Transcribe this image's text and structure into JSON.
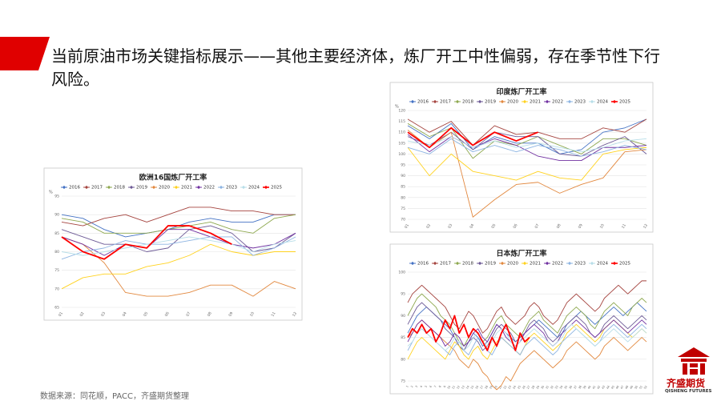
{
  "slide": {
    "title": "当前原油市场关键指标展示——其他主要经济体，炼厂开工中性偏弱，存在季节性下行风险。",
    "source": "数据来源：同花顺，PACC，齐盛期货整理",
    "logo_name": "齐盛期货",
    "logo_en": "QISHENG FUTURES"
  },
  "chart_data": [
    {
      "type": "line",
      "title": "欧洲16国炼厂开工率",
      "y_unit": "%",
      "categories": [
        "01",
        "02",
        "03",
        "04",
        "05",
        "06",
        "07",
        "08",
        "09",
        "10",
        "11",
        "12"
      ],
      "ylim": [
        65,
        95
      ],
      "yticks": [
        65,
        70,
        75,
        80,
        85,
        90,
        95
      ],
      "grid": true,
      "series": [
        {
          "name": "2016",
          "color": "#4472c4",
          "values": [
            90,
            89,
            86,
            84,
            85,
            86,
            88,
            89,
            88,
            88,
            90,
            90
          ]
        },
        {
          "name": "2017",
          "color": "#a5443f",
          "values": [
            88,
            87,
            89,
            90,
            88,
            90,
            92,
            92,
            91,
            91,
            90,
            90
          ]
        },
        {
          "name": "2018",
          "color": "#8ea84f",
          "values": [
            89,
            88,
            85,
            85,
            85,
            86,
            87,
            88,
            86,
            85,
            89,
            90
          ]
        },
        {
          "name": "2019",
          "color": "#6d5a96",
          "values": [
            86,
            84,
            82,
            82,
            80,
            81,
            86,
            87,
            85,
            80,
            81,
            85
          ]
        },
        {
          "name": "2020",
          "color": "#e2883e",
          "values": [
            84,
            82,
            77,
            69,
            68,
            68,
            69,
            71,
            71,
            68,
            72,
            70
          ]
        },
        {
          "name": "2021",
          "color": "#ffd21f",
          "values": [
            70,
            73,
            74,
            74,
            76,
            77,
            79,
            82,
            80,
            79,
            80,
            80
          ]
        },
        {
          "name": "2022",
          "color": "#7030a0",
          "values": [
            84,
            82,
            79,
            82,
            81,
            86,
            86,
            84,
            82,
            81,
            82,
            85
          ]
        },
        {
          "name": "2023",
          "color": "#8db4e2",
          "values": [
            78,
            80,
            81,
            83,
            82,
            82,
            83,
            84,
            84,
            79,
            81,
            84
          ]
        },
        {
          "name": "2024",
          "color": "#b7dee8",
          "values": [
            80,
            79,
            80,
            81,
            82,
            83,
            84,
            83,
            82,
            80,
            82,
            83
          ]
        },
        {
          "name": "2025",
          "color": "#ff0000",
          "values": [
            84,
            80,
            78,
            82,
            81,
            87,
            87,
            85,
            82,
            null,
            null,
            null
          ]
        }
      ]
    },
    {
      "type": "line",
      "title": "印度炼厂开工率",
      "y_unit": "%",
      "categories": [
        "01",
        "02",
        "03",
        "04",
        "05",
        "06",
        "07",
        "08",
        "09",
        "10",
        "11",
        "12"
      ],
      "ylim": [
        70,
        120
      ],
      "yticks": [
        70,
        75,
        80,
        85,
        90,
        95,
        100,
        105,
        110,
        115,
        120
      ],
      "grid": true,
      "series": [
        {
          "name": "2016",
          "color": "#4472c4",
          "values": [
            113,
            107,
            114,
            102,
            108,
            105,
            105,
            100,
            102,
            110,
            112,
            116
          ]
        },
        {
          "name": "2017",
          "color": "#a5443f",
          "values": [
            116,
            110,
            115,
            104,
            113,
            109,
            110,
            107,
            107,
            112,
            110,
            116
          ]
        },
        {
          "name": "2018",
          "color": "#8ea84f",
          "values": [
            114,
            108,
            112,
            98,
            106,
            104,
            108,
            104,
            100,
            107,
            107,
            104
          ]
        },
        {
          "name": "2019",
          "color": "#6d5a96",
          "values": [
            108,
            104,
            110,
            102,
            110,
            108,
            108,
            100,
            99,
            104,
            108,
            100
          ]
        },
        {
          "name": "2020",
          "color": "#e2883e",
          "values": [
            111,
            103,
            110,
            71,
            79,
            86,
            87,
            82,
            86,
            89,
            101,
            102
          ]
        },
        {
          "name": "2021",
          "color": "#ffd21f",
          "values": [
            103,
            90,
            100,
            92,
            90,
            88,
            92,
            89,
            88,
            100,
            102,
            103
          ]
        },
        {
          "name": "2022",
          "color": "#7030a0",
          "values": [
            109,
            101,
            108,
            103,
            107,
            104,
            99,
            97,
            97,
            103,
            103,
            104
          ]
        },
        {
          "name": "2023",
          "color": "#8db4e2",
          "values": [
            103,
            100,
            107,
            101,
            104,
            101,
            104,
            102,
            99,
            101,
            104,
            102
          ]
        },
        {
          "name": "2024",
          "color": "#b7dee8",
          "values": [
            106,
            104,
            108,
            103,
            106,
            103,
            105,
            103,
            101,
            103,
            106,
            107
          ]
        },
        {
          "name": "2025",
          "color": "#ff0000",
          "values": [
            110,
            103,
            112,
            104,
            110,
            106,
            110,
            null,
            null,
            null,
            null,
            null
          ]
        }
      ]
    },
    {
      "type": "line",
      "title": "日本炼厂开工率",
      "categories": [
        "1",
        "2",
        "3",
        "4",
        "5",
        "6",
        "7",
        "8",
        "9",
        "10",
        "11",
        "12",
        "13",
        "14",
        "15",
        "16",
        "17",
        "18",
        "19",
        "20",
        "21",
        "22",
        "23",
        "24",
        "25",
        "26",
        "27",
        "28",
        "29",
        "30",
        "31",
        "32",
        "33",
        "34",
        "35",
        "36",
        "37",
        "38",
        "39",
        "40",
        "41",
        "42",
        "43",
        "44",
        "45",
        "46",
        "47",
        "48",
        "49",
        "50",
        "51",
        "52"
      ],
      "ylim": [
        75,
        100
      ],
      "yticks": [
        75,
        80,
        85,
        90,
        95,
        100
      ],
      "grid": true,
      "series": [
        {
          "name": "2016",
          "color": "#4472c4",
          "values": [
            86,
            88,
            90,
            91,
            92,
            91,
            90,
            89,
            88,
            87,
            85,
            83,
            82,
            84,
            86,
            85,
            83,
            84,
            86,
            88,
            87,
            86,
            85,
            84,
            85,
            86,
            87,
            88,
            89,
            88,
            87,
            86,
            85,
            86,
            88,
            89,
            90,
            91,
            90,
            89,
            88,
            89,
            90,
            91,
            92,
            91,
            90,
            91,
            92,
            93,
            92,
            91
          ]
        },
        {
          "name": "2017",
          "color": "#a5443f",
          "values": [
            93,
            95,
            96,
            97,
            96,
            95,
            94,
            93,
            92,
            90,
            88,
            87,
            89,
            91,
            90,
            88,
            86,
            87,
            89,
            91,
            92,
            90,
            89,
            88,
            89,
            90,
            92,
            93,
            92,
            90,
            89,
            88,
            89,
            91,
            93,
            94,
            95,
            94,
            93,
            92,
            91,
            92,
            94,
            95,
            96,
            97,
            96,
            95,
            96,
            97,
            98,
            98
          ]
        },
        {
          "name": "2018",
          "color": "#8ea84f",
          "values": [
            90,
            92,
            94,
            95,
            94,
            93,
            92,
            90,
            89,
            88,
            86,
            84,
            83,
            85,
            87,
            86,
            84,
            85,
            87,
            89,
            90,
            88,
            87,
            86,
            85,
            87,
            89,
            90,
            91,
            89,
            88,
            87,
            86,
            88,
            90,
            91,
            92,
            91,
            90,
            88,
            87,
            89,
            91,
            92,
            93,
            92,
            91,
            90,
            92,
            93,
            94,
            93
          ]
        },
        {
          "name": "2019",
          "color": "#6d5a96",
          "values": [
            88,
            90,
            92,
            93,
            92,
            91,
            90,
            89,
            87,
            86,
            85,
            83,
            82,
            84,
            85,
            84,
            82,
            83,
            85,
            87,
            88,
            87,
            86,
            84,
            85,
            86,
            88,
            89,
            88,
            87,
            85,
            84,
            85,
            87,
            88,
            89,
            90,
            89,
            88,
            86,
            85,
            86,
            88,
            89,
            90,
            89,
            88,
            87,
            88,
            89,
            90,
            89
          ]
        },
        {
          "name": "2020",
          "color": "#e2883e",
          "values": [
            85,
            86,
            88,
            89,
            88,
            87,
            86,
            85,
            84,
            83,
            82,
            80,
            79,
            78,
            80,
            79,
            77,
            76,
            74,
            73,
            74,
            76,
            75,
            77,
            79,
            80,
            81,
            82,
            81,
            80,
            79,
            78,
            79,
            80,
            82,
            83,
            84,
            83,
            82,
            81,
            80,
            81,
            83,
            84,
            85,
            84,
            83,
            82,
            83,
            84,
            85,
            84
          ]
        },
        {
          "name": "2021",
          "color": "#ffd21f",
          "values": [
            80,
            82,
            84,
            85,
            84,
            83,
            82,
            81,
            80,
            82,
            84,
            83,
            81,
            80,
            82,
            83,
            81,
            80,
            82,
            84,
            85,
            84,
            83,
            82,
            81,
            83,
            85,
            86,
            85,
            84,
            83,
            82,
            83,
            84,
            86,
            87,
            88,
            87,
            86,
            85,
            84,
            85,
            87,
            88,
            89,
            88,
            87,
            86,
            85,
            86,
            87,
            86
          ]
        },
        {
          "name": "2022",
          "color": "#7030a0",
          "values": [
            84,
            86,
            88,
            89,
            88,
            87,
            86,
            85,
            83,
            84,
            86,
            85,
            83,
            84,
            86,
            87,
            85,
            84,
            86,
            88,
            87,
            85,
            84,
            83,
            84,
            86,
            87,
            88,
            87,
            86,
            84,
            83,
            84,
            86,
            87,
            88,
            89,
            88,
            87,
            86,
            85,
            86,
            87,
            88,
            89,
            88,
            87,
            86,
            87,
            88,
            89,
            88
          ]
        },
        {
          "name": "2023",
          "color": "#8db4e2",
          "values": [
            82,
            84,
            86,
            87,
            86,
            85,
            84,
            83,
            82,
            81,
            83,
            84,
            82,
            81,
            83,
            85,
            84,
            82,
            81,
            83,
            85,
            84,
            83,
            82,
            81,
            83,
            84,
            85,
            84,
            83,
            82,
            81,
            82,
            84,
            85,
            86,
            87,
            86,
            85,
            84,
            83,
            84,
            86,
            87,
            88,
            87,
            86,
            85,
            86,
            87,
            88,
            87
          ]
        },
        {
          "name": "2024",
          "color": "#b7dee8",
          "values": [
            83,
            84,
            86,
            87,
            86,
            85,
            84,
            83,
            82,
            83,
            85,
            84,
            82,
            83,
            85,
            86,
            84,
            83,
            84,
            86,
            87,
            86,
            84,
            83,
            84,
            85,
            86,
            87,
            86,
            85,
            84,
            83,
            84,
            85,
            87,
            88,
            87,
            86,
            85,
            84,
            83,
            84,
            85,
            86,
            87,
            86,
            85,
            84,
            85,
            86,
            87,
            86
          ]
        },
        {
          "name": "2025",
          "color": "#ff0000",
          "values": [
            85,
            87,
            86,
            88,
            86,
            87,
            84,
            86,
            89,
            87,
            90,
            86,
            88,
            85,
            87,
            86,
            84,
            82,
            85,
            83,
            86,
            88,
            85,
            82,
            86,
            84,
            85,
            null,
            null,
            null,
            null,
            null,
            null,
            null,
            null,
            null,
            null,
            null,
            null,
            null,
            null,
            null,
            null,
            null,
            null,
            null,
            null,
            null,
            null,
            null,
            null,
            null
          ]
        }
      ]
    }
  ]
}
